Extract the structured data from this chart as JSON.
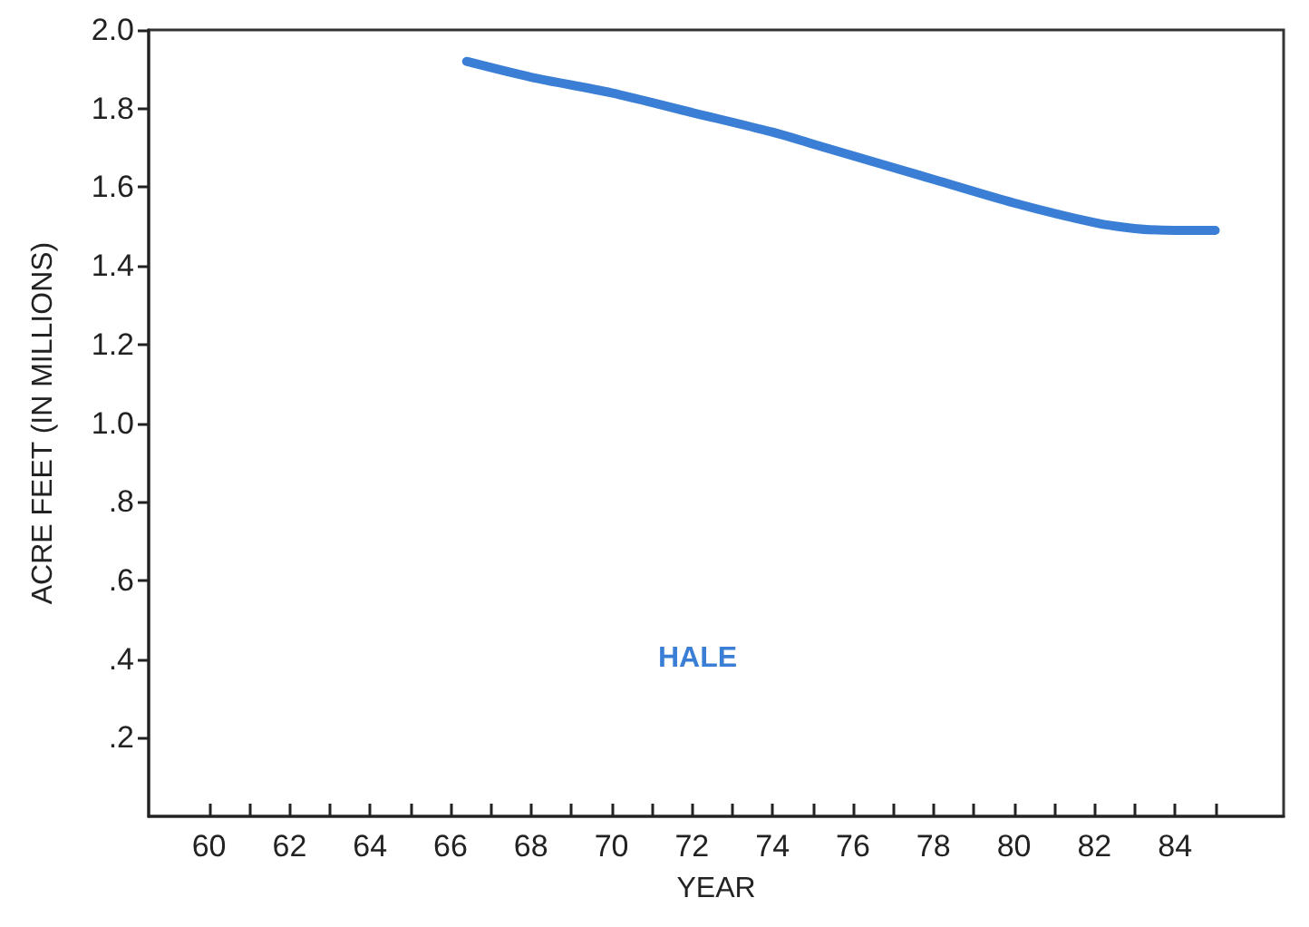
{
  "chart_data": {
    "type": "line",
    "xlabel": "YEAR",
    "ylabel": "ACRE FEET (IN MILLIONS)",
    "x": [
      66.4,
      68,
      70,
      72,
      74,
      75,
      76,
      78,
      80,
      82,
      83,
      84,
      85
    ],
    "series": [
      {
        "color": "#3a7fd5",
        "values": [
          1.92,
          1.88,
          1.84,
          1.79,
          1.74,
          1.71,
          1.68,
          1.62,
          1.56,
          1.51,
          1.495,
          1.49,
          1.49
        ]
      }
    ],
    "xlim": [
      58.5,
      86.7
    ],
    "xticks": [
      60,
      {
        "value": 61,
        "label": null
      },
      62,
      {
        "value": 63,
        "label": null
      },
      64,
      {
        "value": 65,
        "label": null
      },
      66,
      {
        "value": 67,
        "label": null
      },
      68,
      {
        "value": 69,
        "label": null
      },
      70,
      {
        "value": 71,
        "label": null
      },
      72,
      {
        "value": 73,
        "label": null
      },
      74,
      {
        "value": 75,
        "label": null
      },
      76,
      {
        "value": 77,
        "label": null
      },
      78,
      {
        "value": 79,
        "label": null
      },
      80,
      {
        "value": 81,
        "label": null
      },
      82,
      {
        "value": 83,
        "label": null
      },
      84,
      {
        "value": 85,
        "label": null
      }
    ],
    "ylim": [
      0,
      2
    ],
    "yticks": [
      {
        "value": 0.2,
        "label": ".2"
      },
      {
        "value": 0.4,
        "label": ".4"
      },
      {
        "value": 0.6,
        "label": ".6"
      },
      {
        "value": 0.8,
        "label": ".8"
      },
      {
        "value": 1.0,
        "label": "1.0"
      },
      {
        "value": 1.2,
        "label": "1.2"
      },
      {
        "value": 1.4,
        "label": "1.4"
      },
      {
        "value": 1.6,
        "label": "1.6"
      },
      {
        "value": 1.8,
        "label": "1.8"
      },
      {
        "value": 2.0,
        "label": "2.0"
      }
    ],
    "annotations": [
      "HALE"
    ],
    "grid": false,
    "marker": "none",
    "line_style": "solid"
  }
}
